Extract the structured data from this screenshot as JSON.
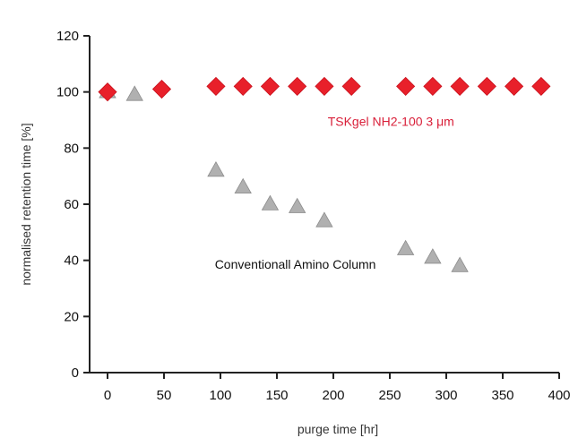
{
  "chart_data": {
    "type": "scatter",
    "xlabel": "purge time [hr]",
    "ylabel": "normalised retention time [%]",
    "xlim": [
      0,
      400
    ],
    "ylim": [
      0,
      120
    ],
    "xticks": [
      "0",
      "50",
      "100",
      "150",
      "200",
      "250",
      "300",
      "350",
      "400"
    ],
    "yticks": [
      "0",
      "20",
      "40",
      "60",
      "80",
      "100",
      "120"
    ],
    "grid": false,
    "legend": "none",
    "series": [
      {
        "marker": "diamond",
        "color": "#e8202a",
        "points": [
          {
            "x": 0,
            "y": 100
          },
          {
            "x": 48,
            "y": 101
          },
          {
            "x": 96,
            "y": 102
          },
          {
            "x": 120,
            "y": 102
          },
          {
            "x": 144,
            "y": 102
          },
          {
            "x": 168,
            "y": 102
          },
          {
            "x": 192,
            "y": 102
          },
          {
            "x": 216,
            "y": 102
          },
          {
            "x": 264,
            "y": 102
          },
          {
            "x": 288,
            "y": 102
          },
          {
            "x": 312,
            "y": 102
          },
          {
            "x": 336,
            "y": 102
          },
          {
            "x": 360,
            "y": 102
          },
          {
            "x": 384,
            "y": 102
          }
        ]
      },
      {
        "marker": "triangle",
        "color": "#b0b0b0",
        "points": [
          {
            "x": 0,
            "y": 100
          },
          {
            "x": 24,
            "y": 99
          },
          {
            "x": 96,
            "y": 72
          },
          {
            "x": 120,
            "y": 66
          },
          {
            "x": 144,
            "y": 60
          },
          {
            "x": 168,
            "y": 59
          },
          {
            "x": 192,
            "y": 54
          },
          {
            "x": 264,
            "y": 44
          },
          {
            "x": 288,
            "y": 41
          },
          {
            "x": 312,
            "y": 38
          }
        ]
      }
    ],
    "annotations": [
      {
        "text": "TSKgel NH2-100 3 μm",
        "x": 195,
        "y": 88,
        "color": "#d9203a"
      },
      {
        "text": "Conventionall Amino Column",
        "x": 95,
        "y": 37,
        "color": "#111111"
      }
    ]
  }
}
